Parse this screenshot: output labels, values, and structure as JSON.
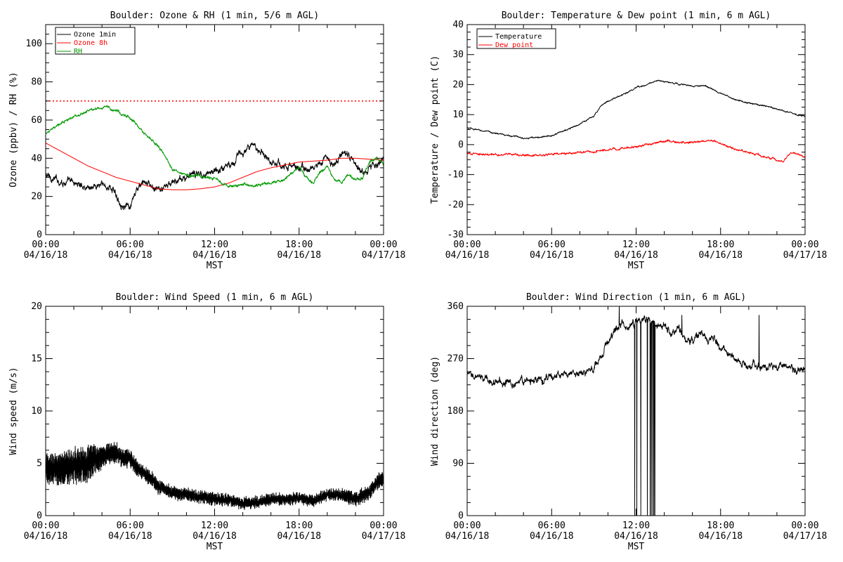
{
  "chart_data": [
    {
      "type": "line",
      "title": "Boulder: Ozone & RH (1 min, 5/6 m AGL)",
      "xlabel": "MST",
      "ylabel": "Ozone (ppbv) / RH (%)",
      "xlim": [
        0,
        24
      ],
      "ylim": [
        0,
        110
      ],
      "yticks": [
        0,
        20,
        40,
        60,
        80,
        100
      ],
      "xtick_labels": [
        {
          "time": "00:00",
          "date": "04/16/18"
        },
        {
          "time": "06:00",
          "date": "04/16/18"
        },
        {
          "time": "12:00",
          "date": "04/16/18"
        },
        {
          "time": "18:00",
          "date": "04/16/18"
        },
        {
          "time": "00:00",
          "date": "04/17/18"
        }
      ],
      "legend_position": "top-left",
      "hlines": [
        {
          "y": 70,
          "color": "#ff0000",
          "style": "dotted"
        }
      ],
      "series": [
        {
          "name": "Ozone 1min",
          "color": "#000000",
          "noise": 2.2,
          "x": [
            0,
            1,
            2,
            3,
            4,
            4.8,
            5,
            5.5,
            6,
            6.5,
            7,
            7.5,
            8,
            9,
            10,
            11,
            12,
            13,
            14,
            14.5,
            15,
            15.5,
            16,
            17,
            18,
            19,
            19.5,
            20,
            20.5,
            21,
            21.5,
            22,
            22.5,
            23,
            23.5,
            24
          ],
          "y": [
            31,
            28,
            27,
            25,
            26,
            24,
            20,
            16,
            13,
            24,
            27,
            25,
            23,
            27,
            30,
            32,
            33,
            37,
            43,
            45,
            46,
            43,
            39,
            36,
            35,
            34,
            38,
            40,
            36,
            43,
            41,
            36,
            33,
            36,
            38,
            39
          ]
        },
        {
          "name": "Ozone 8h",
          "color": "#ff0000",
          "noise": 0,
          "x": [
            0,
            1,
            2,
            3,
            4,
            5,
            6,
            7,
            8,
            9,
            10,
            11,
            12,
            13,
            14,
            15,
            16,
            17,
            18,
            19,
            20,
            21,
            22,
            23,
            24
          ],
          "y": [
            48,
            44,
            40,
            36,
            33,
            30,
            28,
            26,
            24,
            23.5,
            23.5,
            24,
            25,
            27,
            30,
            33,
            35,
            36.5,
            38,
            38.5,
            39,
            40,
            40,
            39.5,
            39
          ]
        },
        {
          "name": "RH",
          "color": "#009900",
          "noise": 0.8,
          "x": [
            0,
            0.5,
            1,
            2,
            3,
            4,
            4.3,
            5,
            6,
            6.5,
            7,
            8,
            8.5,
            9,
            10,
            11,
            12,
            13,
            14,
            15,
            16,
            17,
            17.5,
            18,
            18.5,
            19,
            19.5,
            20,
            20.5,
            21,
            21.5,
            22,
            22.5,
            23,
            23.5,
            24
          ],
          "y": [
            53,
            55,
            58,
            62,
            65,
            66,
            67,
            65,
            61,
            57,
            53,
            46,
            41,
            34,
            31,
            31,
            29,
            25,
            26,
            26,
            27,
            29,
            33,
            35,
            30,
            27,
            33,
            36,
            29,
            27,
            32,
            29,
            30,
            38,
            40,
            37
          ]
        }
      ]
    },
    {
      "type": "line",
      "title": "Boulder: Temperature & Dew point (1 min, 6 m AGL)",
      "xlabel": "MST",
      "ylabel": "Temperature / Dew point (C)",
      "xlim": [
        0,
        24
      ],
      "ylim": [
        -30,
        40
      ],
      "yticks": [
        -30,
        -20,
        -10,
        0,
        10,
        20,
        30,
        40
      ],
      "xtick_labels": [
        {
          "time": "00:00",
          "date": "04/16/18"
        },
        {
          "time": "06:00",
          "date": "04/16/18"
        },
        {
          "time": "12:00",
          "date": "04/16/18"
        },
        {
          "time": "18:00",
          "date": "04/16/18"
        },
        {
          "time": "00:00",
          "date": "04/17/18"
        }
      ],
      "legend_position": "top-left",
      "hlines": [],
      "series": [
        {
          "name": "Temperature",
          "color": "#000000",
          "noise": 0.25,
          "x": [
            0,
            1,
            2,
            3,
            4,
            5,
            6,
            7,
            8,
            9,
            9.5,
            10,
            11,
            12,
            13,
            13.5,
            14,
            15,
            16,
            17,
            18,
            19,
            20,
            21,
            22,
            23,
            24
          ],
          "y": [
            5.5,
            4.7,
            3.8,
            3,
            2.3,
            2.3,
            3,
            4.8,
            6.8,
            9.5,
            13,
            14.5,
            16.5,
            18.8,
            20.5,
            21.3,
            21,
            20.2,
            19.5,
            19.5,
            17,
            15,
            13.8,
            13.2,
            12,
            10.5,
            9.5
          ]
        },
        {
          "name": "Dew point",
          "color": "#ff0000",
          "noise": 0.35,
          "x": [
            0,
            1,
            2,
            3,
            4,
            5,
            6,
            7,
            8,
            9,
            10,
            11,
            12,
            13,
            14,
            15,
            16,
            17,
            18,
            19,
            20,
            21,
            22,
            22.5,
            23,
            23.5,
            24
          ],
          "y": [
            -3,
            -3.4,
            -3.3,
            -3.2,
            -3.5,
            -3.6,
            -3.2,
            -3,
            -2.6,
            -2.2,
            -1.7,
            -1.3,
            -0.6,
            0.2,
            1.2,
            0.7,
            0.7,
            1.5,
            0.5,
            -1.5,
            -2.5,
            -4,
            -5,
            -5.5,
            -2.6,
            -3.2,
            -4
          ]
        }
      ]
    },
    {
      "type": "line",
      "title": "Boulder: Wind Speed (1 min, 6 m AGL)",
      "xlabel": "MST",
      "ylabel": "Wind speed (m/s)",
      "xlim": [
        0,
        24
      ],
      "ylim": [
        0,
        20
      ],
      "yticks": [
        0,
        5,
        10,
        15,
        20
      ],
      "xtick_labels": [
        {
          "time": "00:00",
          "date": "04/16/18"
        },
        {
          "time": "06:00",
          "date": "04/16/18"
        },
        {
          "time": "12:00",
          "date": "04/16/18"
        },
        {
          "time": "18:00",
          "date": "04/16/18"
        },
        {
          "time": "00:00",
          "date": "04/17/18"
        }
      ],
      "legend_position": "none",
      "hlines": [],
      "series": [
        {
          "name": "",
          "color": "#000000",
          "noise": 0,
          "x": [
            0,
            1,
            2,
            3,
            3.5,
            4,
            4.5,
            5,
            5.5,
            6,
            6.5,
            7,
            7.5,
            8,
            9,
            10,
            11,
            12,
            13,
            14,
            15,
            16,
            17,
            18,
            19,
            20,
            21,
            22,
            23,
            23.5,
            24
          ],
          "y": [
            4.5,
            4.5,
            4.8,
            5,
            5.4,
            5.5,
            6,
            6,
            5.5,
            5.5,
            4.5,
            4,
            3.5,
            2.8,
            2.2,
            2,
            1.8,
            1.6,
            1.5,
            1.2,
            1.3,
            1.6,
            1.5,
            1.7,
            1.4,
            2,
            2,
            1.6,
            2.2,
            3.2,
            3.5
          ],
          "amplitude": [
            [
              0,
              2.0
            ],
            [
              3.2,
              2.5
            ],
            [
              3.6,
              1.6
            ],
            [
              7,
              1.0
            ],
            [
              10,
              0.8
            ],
            [
              20,
              0.7
            ],
            [
              22,
              0.9
            ],
            [
              24,
              1.1
            ]
          ]
        }
      ]
    },
    {
      "type": "line",
      "title": "Boulder: Wind Direction (1 min, 6 m AGL)",
      "xlabel": "MST",
      "ylabel": "Wind direction (deg)",
      "xlim": [
        0,
        24
      ],
      "ylim": [
        0,
        360
      ],
      "yticks": [
        0,
        90,
        180,
        270,
        360
      ],
      "xtick_labels": [
        {
          "time": "00:00",
          "date": "04/16/18"
        },
        {
          "time": "06:00",
          "date": "04/16/18"
        },
        {
          "time": "12:00",
          "date": "04/16/18"
        },
        {
          "time": "18:00",
          "date": "04/16/18"
        },
        {
          "time": "00:00",
          "date": "04/17/18"
        }
      ],
      "legend_position": "none",
      "hlines": [],
      "series": [
        {
          "name": "",
          "color": "#000000",
          "noise": 8,
          "x": [
            0,
            1,
            2,
            3,
            4,
            5,
            6,
            7,
            8,
            9,
            9.5,
            10,
            10.5,
            11,
            11.5,
            12,
            13,
            14,
            14.5,
            15,
            15.5,
            16,
            16.5,
            17,
            17.5,
            18,
            19,
            20,
            21,
            22,
            23,
            24
          ],
          "y": [
            240,
            235,
            232,
            228,
            232,
            232,
            238,
            240,
            246,
            252,
            270,
            300,
            320,
            330,
            325,
            335,
            335,
            330,
            315,
            320,
            305,
            300,
            310,
            305,
            300,
            290,
            270,
            260,
            255,
            260,
            255,
            250
          ],
          "spikes": [
            {
              "x": 11.9,
              "y": 0
            },
            {
              "x": 12.05,
              "y": 0
            },
            {
              "x": 12.35,
              "y": 0
            },
            {
              "x": 12.8,
              "y": 0
            },
            {
              "x": 13.0,
              "y": 0
            },
            {
              "x": 13.1,
              "y": 0
            },
            {
              "x": 13.2,
              "y": 0
            },
            {
              "x": 13.28,
              "y": 0
            },
            {
              "x": 13.35,
              "y": 0
            },
            {
              "x": 20.75,
              "y": 345
            },
            {
              "x": 15.25,
              "y": 345
            },
            {
              "x": 10.8,
              "y": 360
            }
          ]
        }
      ]
    }
  ]
}
